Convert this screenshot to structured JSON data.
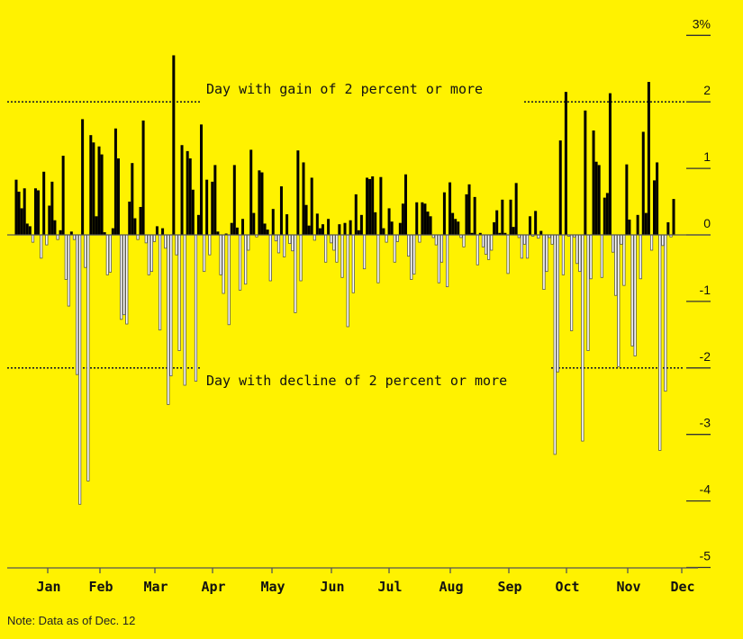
{
  "chart_data": {
    "type": "bar",
    "title": "",
    "xlabel": "",
    "ylabel": "",
    "y_unit": "%",
    "ylim": [
      -5,
      3
    ],
    "yticks": [
      {
        "value": 3,
        "label": "3%"
      },
      {
        "value": 2,
        "label": "2"
      },
      {
        "value": 1,
        "label": "1"
      },
      {
        "value": 0,
        "label": "0"
      },
      {
        "value": -1,
        "label": "-1"
      },
      {
        "value": -2,
        "label": "-2"
      },
      {
        "value": -3,
        "label": "-3"
      },
      {
        "value": -4,
        "label": "-4"
      },
      {
        "value": -5,
        "label": "-5"
      }
    ],
    "months": [
      "Jan",
      "Feb",
      "Mar",
      "Apr",
      "May",
      "Jun",
      "Jul",
      "Aug",
      "Sep",
      "Oct",
      "Nov",
      "Dec"
    ],
    "reference_lines": [
      {
        "value": 2,
        "label": "Day with gain of 2 percent or more"
      },
      {
        "value": -2,
        "label": "Day with decline of 2 percent or more"
      }
    ],
    "positive_color": "#000000",
    "negative_color": "#ffffff",
    "background_color": "#fff200",
    "series": [
      {
        "values": [
          0.83,
          0.65,
          0.4,
          0.7,
          0.17,
          0.13,
          -0.11,
          0.7,
          0.67,
          -0.35,
          0.95,
          -0.15,
          0.44,
          0.8,
          0.22,
          -0.07,
          0.07,
          1.19,
          -0.67,
          -1.07,
          0.05,
          -0.07,
          -2.1,
          -4.05,
          1.74,
          -0.49,
          -3.7,
          1.5,
          1.39,
          0.28,
          1.33,
          1.21,
          0.04,
          -0.6,
          -0.56,
          0.1,
          1.6,
          1.15,
          -1.27,
          -1.2,
          -1.34,
          0.5,
          1.08,
          0.25,
          -0.07,
          0.42,
          1.72,
          -0.12,
          -0.6,
          -0.55,
          -0.1,
          0.13,
          -1.43,
          0.1,
          -0.2,
          -2.55,
          -2.12,
          2.7,
          -0.3,
          -1.74,
          1.35,
          -2.26,
          1.26,
          1.15,
          0.68,
          -2.2,
          0.3,
          1.66,
          -0.55,
          0.83,
          -0.3,
          0.8,
          1.05,
          0.05,
          -0.6,
          -0.88,
          0.02,
          -1.35,
          0.18,
          1.05,
          0.11,
          -0.83,
          0.24,
          -0.74,
          -0.23,
          1.28,
          0.33,
          -0.03,
          0.97,
          0.94,
          0.17,
          0.08,
          -0.69,
          0.39,
          -0.09,
          -0.27,
          0.73,
          -0.33,
          0.31,
          -0.13,
          -0.24,
          -1.17,
          1.27,
          -0.69,
          1.09,
          0.45,
          0.14,
          0.86,
          -0.08,
          0.32,
          0.1,
          0.16,
          -0.41,
          0.24,
          -0.12,
          -0.23,
          -0.41,
          0.16,
          -0.64,
          0.18,
          -1.38,
          0.22,
          -0.87,
          0.61,
          0.07,
          0.3,
          -0.51,
          0.86,
          0.84,
          0.88,
          0.34,
          -0.72,
          0.87,
          0.1,
          -0.11,
          0.4,
          0.2,
          -0.41,
          -0.1,
          0.18,
          0.47,
          0.91,
          -0.32,
          -0.67,
          -0.59,
          0.49,
          -0.11,
          0.49,
          0.47,
          0.35,
          0.28,
          -0.04,
          -0.15,
          -0.72,
          -0.41,
          0.64,
          -0.78,
          0.79,
          0.33,
          0.24,
          0.2,
          -0.04,
          -0.18,
          0.61,
          0.76,
          0.03,
          0.57,
          -0.45,
          0.03,
          -0.18,
          -0.29,
          -0.37,
          -0.23,
          0.19,
          0.37,
          0.03,
          0.53,
          0.03,
          -0.58,
          0.53,
          0.12,
          0.78,
          -0.04,
          -0.35,
          -0.14,
          -0.35,
          0.28,
          -0.02,
          0.36,
          -0.05,
          0.06,
          -0.82,
          -0.55,
          -0.04,
          -0.14,
          -3.3,
          -2.06,
          1.42,
          -0.6,
          2.15,
          -0.02,
          -1.44,
          -0.03,
          -0.43,
          -0.55,
          -3.1,
          1.87,
          -1.74,
          -0.66,
          1.57,
          1.1,
          1.05,
          -0.64,
          0.56,
          0.63,
          2.13,
          -0.26,
          -0.91,
          -1.98,
          -0.14,
          -0.76,
          1.06,
          0.23,
          -1.67,
          -1.82,
          0.3,
          -0.66,
          1.55,
          0.33,
          2.3,
          -0.23,
          0.82,
          1.09,
          -3.24,
          -0.16,
          -2.35,
          0.19,
          -0.03,
          0.54
        ]
      }
    ]
  },
  "note": "Note: Data as of Dec. 12"
}
